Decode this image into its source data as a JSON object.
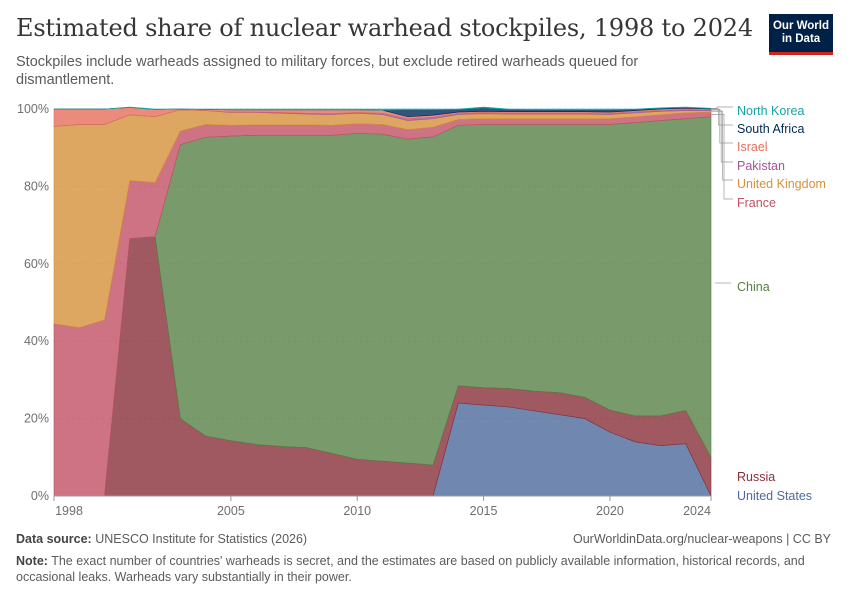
{
  "header": {
    "title": "Estimated share of nuclear warhead stockpiles, 1998 to 2024",
    "subtitle": "Stockpiles include warheads assigned to military forces, but exclude retired warheads queued for dismantlement.",
    "logo_line1": "Our World",
    "logo_line2": "in Data"
  },
  "footer": {
    "source_label": "Data source:",
    "source_text": "UNESCO Institute for Statistics (2026)",
    "url": "OurWorldinData.org/nuclear-weapons | CC BY",
    "note_label": "Note:",
    "note_text": "The exact number of countries' warheads is secret, and the estimates are based on publicly available information, historical records, and occasional leaks. Warheads vary substantially in their power."
  },
  "chart_data": {
    "type": "area",
    "stacked": true,
    "normalized": true,
    "x": [
      1998,
      1999,
      2000,
      2001,
      2002,
      2003,
      2004,
      2005,
      2006,
      2007,
      2008,
      2009,
      2010,
      2011,
      2012,
      2013,
      2014,
      2015,
      2016,
      2017,
      2018,
      2019,
      2020,
      2021,
      2022,
      2023,
      2024
    ],
    "xticks": [
      1998,
      2005,
      2010,
      2015,
      2020,
      2024
    ],
    "ylim": [
      0,
      100
    ],
    "yticks": [
      "0%",
      "20%",
      "40%",
      "60%",
      "80%",
      "100%"
    ],
    "grid": "horizontal",
    "legend_placement": "right",
    "series": [
      {
        "name": "United States",
        "color": "#4c6a9c",
        "values": [
          0,
          0,
          0,
          0,
          0,
          0,
          0,
          0,
          0,
          0,
          0,
          0,
          0,
          0,
          0,
          0,
          24,
          23.5,
          23,
          22,
          21,
          20,
          16.5,
          14,
          13,
          13.5,
          0
        ]
      },
      {
        "name": "Russia",
        "color": "#883039",
        "values": [
          0,
          0,
          0,
          66.5,
          67,
          20,
          15.5,
          14.3,
          13.3,
          12.8,
          12.5,
          11,
          9.5,
          9,
          8.5,
          8,
          4.5,
          4.5,
          4.8,
          5.1,
          5.7,
          5.5,
          5.7,
          6.7,
          7.7,
          8.6,
          10
        ]
      },
      {
        "name": "China",
        "color": "#578145",
        "values": [
          0,
          0,
          0,
          0,
          0,
          70.8,
          77.2,
          78.7,
          79.9,
          80.4,
          80.7,
          82.2,
          84.2,
          84.5,
          83.7,
          84.8,
          67.3,
          68,
          68.2,
          68.9,
          69.3,
          70.5,
          73.8,
          75.8,
          76.3,
          75.4,
          88
        ]
      },
      {
        "name": "France",
        "color": "#c15065",
        "values": [
          44.5,
          43.5,
          45.5,
          15,
          14,
          3.5,
          3.3,
          2.8,
          2.7,
          2.7,
          2.7,
          2.6,
          2.5,
          2.5,
          2.5,
          2.5,
          1.5,
          1.5,
          1.5,
          1.5,
          1.5,
          1.5,
          1.5,
          1.5,
          1.5,
          1.5,
          1.2
        ]
      },
      {
        "name": "United Kingdom",
        "color": "#d6913a",
        "values": [
          51,
          52.5,
          50.5,
          17,
          17,
          5.5,
          3.6,
          3.3,
          3.2,
          3,
          2.8,
          2.8,
          2.7,
          2.6,
          2.3,
          2.2,
          1.3,
          1.3,
          1.2,
          1.2,
          1.2,
          1.2,
          1.1,
          1,
          0.9,
          0.6,
          0.4
        ]
      },
      {
        "name": "Pakistan",
        "color": "#a2559c",
        "values": [
          0,
          0,
          0,
          0,
          0,
          0,
          0,
          0.1,
          0.1,
          0.2,
          0.2,
          0.2,
          0.2,
          0.3,
          0.5,
          0.4,
          0.3,
          0.3,
          0.3,
          0.3,
          0.3,
          0.3,
          0.3,
          0.3,
          0.3,
          0.3,
          0.2
        ]
      },
      {
        "name": "Israel",
        "color": "#e56e5a",
        "values": [
          4.5,
          4,
          4,
          1.9,
          1.9,
          0.2,
          0.3,
          0.6,
          0.6,
          0.7,
          0.9,
          1,
          0.7,
          0.8,
          0.5,
          0.5,
          0.3,
          0.3,
          0.3,
          0.3,
          0.3,
          0.3,
          0.3,
          0.3,
          0.3,
          0.3,
          0.2
        ]
      },
      {
        "name": "South Africa",
        "color": "#00295b",
        "values": [
          0,
          0,
          0,
          0,
          0,
          0,
          0,
          0,
          0,
          0,
          0,
          0,
          0,
          0,
          1.8,
          1.4,
          0.7,
          0.9,
          0.6,
          0.5,
          0.5,
          0.5,
          0.6,
          0.3,
          0.2,
          0.2,
          0.1
        ]
      },
      {
        "name": "North Korea",
        "color": "#18a1a4",
        "values": [
          0,
          0,
          0,
          0.1,
          0.1,
          0,
          0.1,
          0.2,
          0.2,
          0.2,
          0.2,
          0.2,
          0.2,
          0.3,
          0.2,
          0.2,
          0.1,
          0.2,
          0.1,
          0.2,
          0.2,
          0.2,
          0.2,
          0.1,
          0.1,
          0.1,
          0.1
        ]
      }
    ],
    "legend_order": [
      "North Korea",
      "South Africa",
      "Israel",
      "Pakistan",
      "United Kingdom",
      "France",
      "China",
      "Russia",
      "United States"
    ]
  }
}
